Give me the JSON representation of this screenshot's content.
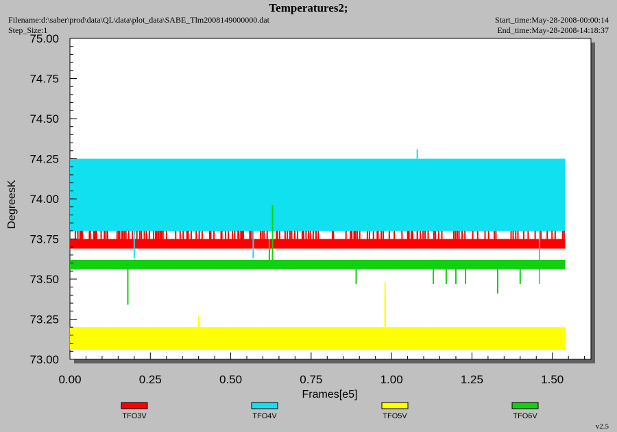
{
  "header": {
    "title": "Temperatures2;",
    "filename": "Filename:d:\\saber\\prod\\data\\QL\\data\\plot_data\\SABE_Tlm2008149000000.dat",
    "step_size": "Step_Size:1",
    "start_time": "Start_time:May-28-2008-00:00:14",
    "end_time": "End_time:May-28-2008-14:18:37",
    "version": "v2.5"
  },
  "colors": {
    "TFO3V": "#ff0000",
    "TFO4V": "#10e0f0",
    "TFO5V": "#ffff00",
    "TFO6V": "#10d010",
    "background": "#c0c0c0",
    "plot_bg": "#ffffff"
  },
  "chart_data": {
    "type": "line",
    "title": "Temperatures2;",
    "xlabel": "Frames[e5]",
    "ylabel": "DegreesK",
    "xlim": [
      0,
      1.62
    ],
    "ylim": [
      73.0,
      75.0
    ],
    "xticks": [
      "0.00",
      "0.25",
      "0.50",
      "0.75",
      "1.00",
      "1.25",
      "1.50"
    ],
    "yticks": [
      "73.00",
      "73.25",
      "73.50",
      "73.75",
      "74.00",
      "74.25",
      "74.50",
      "74.75",
      "75.00"
    ],
    "legend_position": "bottom",
    "series": [
      {
        "name": "TFO3V",
        "color": "#ff0000",
        "x_range": [
          0,
          1.54
        ],
        "levels": [
          73.69,
          73.75,
          73.82
        ],
        "typical_band": [
          73.69,
          73.75
        ],
        "outliers": [
          {
            "x": 0.27,
            "y": 73.88
          },
          {
            "x": 0.28,
            "y": 73.88
          },
          {
            "x": 0.47,
            "y": 73.84
          },
          {
            "x": 1.08,
            "y": 73.88
          }
        ]
      },
      {
        "name": "TFO4V",
        "color": "#10e0f0",
        "x_range": [
          0,
          1.54
        ],
        "levels": [
          73.8,
          73.88,
          73.95,
          74.0,
          74.1,
          74.17,
          74.25
        ],
        "typical_band": [
          73.8,
          74.25
        ],
        "outliers": [
          {
            "x": 1.08,
            "y": 74.31
          },
          {
            "x": 0.2,
            "y": 73.63
          },
          {
            "x": 0.57,
            "y": 73.63
          },
          {
            "x": 1.46,
            "y": 73.47
          }
        ]
      },
      {
        "name": "TFO5V",
        "color": "#ffff00",
        "x_range": [
          0,
          1.54
        ],
        "levels": [
          73.06,
          73.13,
          73.2
        ],
        "typical_band": [
          73.06,
          73.2
        ],
        "outliers": [
          {
            "x": 0.4,
            "y": 73.27
          },
          {
            "x": 0.98,
            "y": 73.48
          },
          {
            "x": 0.98,
            "y": 73.4
          }
        ]
      },
      {
        "name": "TFO6V",
        "color": "#10d010",
        "x_range": [
          0,
          1.54
        ],
        "levels": [
          73.56,
          73.6
        ],
        "typical_band": [
          73.56,
          73.62
        ],
        "outliers": [
          {
            "x": 0.18,
            "y": 73.34
          },
          {
            "x": 0.63,
            "y": 73.96
          },
          {
            "x": 0.62,
            "y": 73.75
          },
          {
            "x": 0.89,
            "y": 73.47
          },
          {
            "x": 1.13,
            "y": 73.47
          },
          {
            "x": 1.17,
            "y": 73.47
          },
          {
            "x": 1.2,
            "y": 73.47
          },
          {
            "x": 1.23,
            "y": 73.47
          },
          {
            "x": 1.33,
            "y": 73.41
          },
          {
            "x": 1.4,
            "y": 73.47
          }
        ]
      }
    ]
  }
}
